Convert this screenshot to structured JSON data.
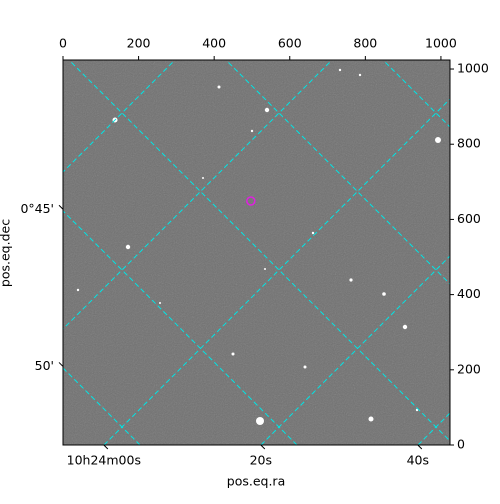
{
  "chart_data": {
    "type": "image",
    "xlabel": "pos.eq.ra",
    "ylabel": "pos.eq.dec",
    "xlim": [
      0,
      1024
    ],
    "ylim": [
      0,
      1024
    ],
    "xticks": [
      0,
      200,
      400,
      600,
      800,
      1000
    ],
    "yticks": [
      0,
      200,
      400,
      600,
      800,
      1000
    ],
    "ralim": [
      -5.2,
      44.1
    ],
    "raticks": [
      {
        "value": 0,
        "label": "10h24m00s"
      },
      {
        "value": 20,
        "label": "20s"
      },
      {
        "value": 40,
        "label": "40s"
      }
    ],
    "declim": [
      40.25,
      52.5
    ],
    "decticks": [
      {
        "value": 45,
        "label": "0°45'"
      },
      {
        "value": 50,
        "label": "50'"
      }
    ],
    "grid_color": "#00e5e5",
    "marker": {
      "x": 497,
      "y": 649,
      "color": "#e020e0"
    }
  }
}
